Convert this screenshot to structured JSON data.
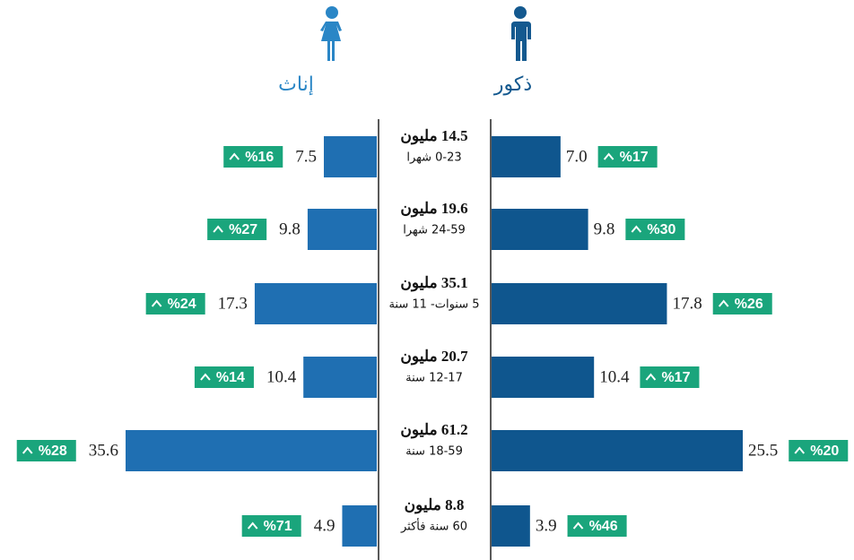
{
  "chart_data": {
    "type": "butterfly",
    "categories": [
      "0-23 شهرا",
      "24-59 شهرا",
      "5 سنوات- 11 سنة",
      "12-17 سنة",
      "18-59 سنة",
      "60 سنة فأكثر"
    ],
    "total_labels": [
      "14.5 مليون",
      "19.6 مليون",
      "35.1 مليون",
      "20.7 مليون",
      "61.2 مليون",
      "8.8 مليون"
    ],
    "series": [
      {
        "name": "إناث",
        "color": "#1f6fb2",
        "values": [
          7.5,
          9.8,
          17.3,
          10.4,
          35.6,
          4.9
        ],
        "growth_labels": [
          "%16",
          "%27",
          "%24",
          "%14",
          "%28",
          "%71"
        ],
        "xlim": [
          0,
          35.6
        ]
      },
      {
        "name": "ذكور",
        "color": "#0f568e",
        "values": [
          7.0,
          9.8,
          17.8,
          10.4,
          25.5,
          3.9
        ],
        "value_labels": [
          "7.0",
          "9.8",
          "17.8",
          "10.4",
          "25.5",
          "3.9"
        ],
        "growth_labels": [
          "%17",
          "%30",
          "%26",
          "%17",
          "%20",
          "%46"
        ],
        "xlim": [
          0,
          25.5
        ]
      }
    ]
  }
}
